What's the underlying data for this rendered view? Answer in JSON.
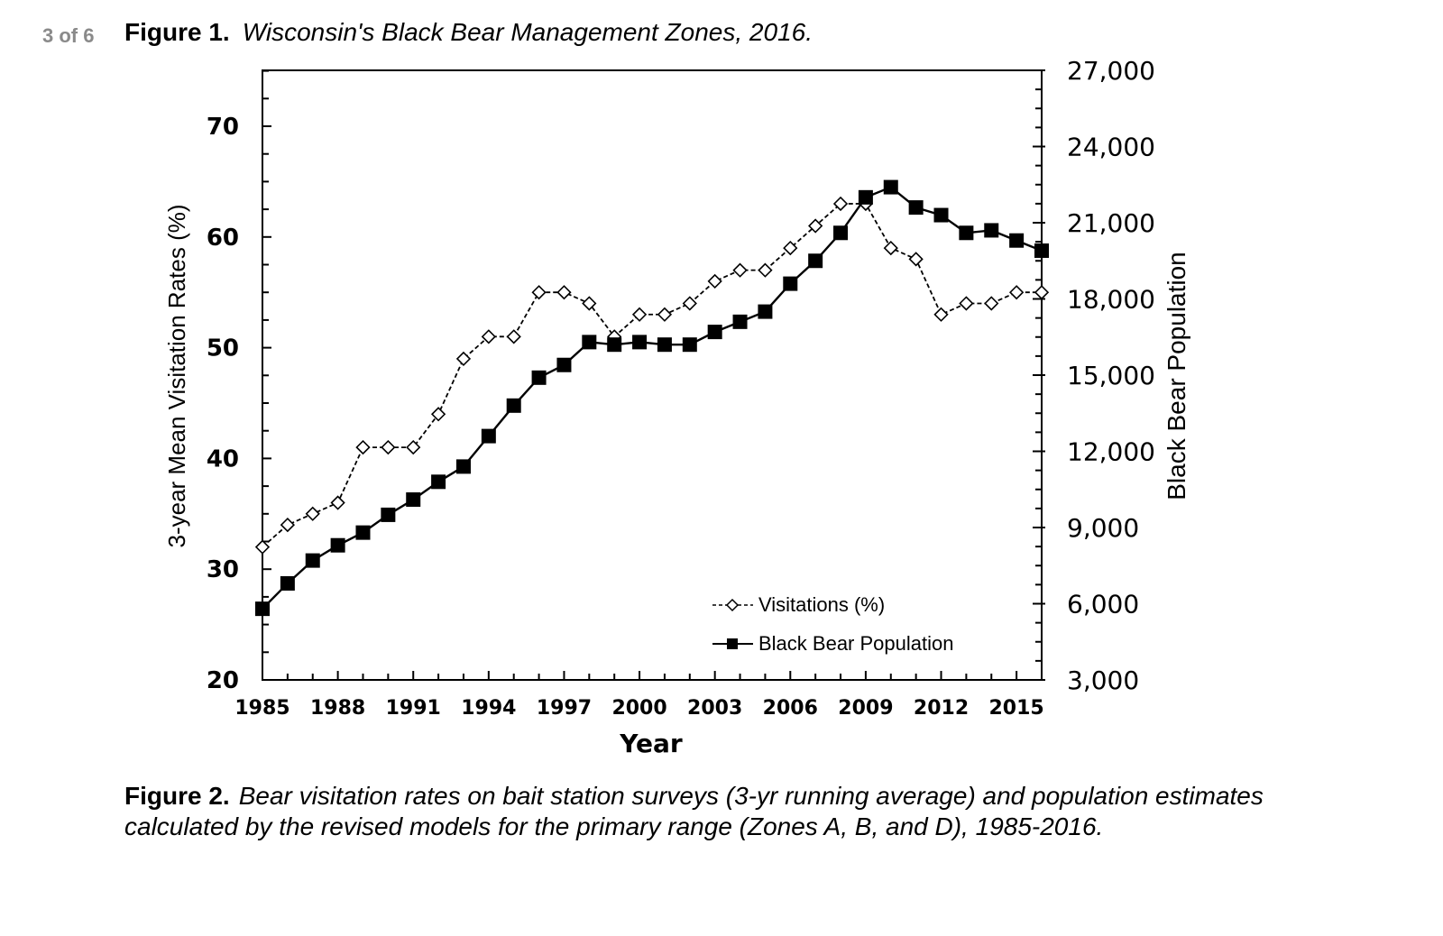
{
  "page": {
    "page_indicator": "3 of 6",
    "figure1": {
      "label": "Figure 1.",
      "title": "Wisconsin's Black Bear Management Zones, 2016."
    },
    "figure2": {
      "label": "Figure 2.",
      "caption": "Bear visitation rates on bait station surveys (3-yr running average) and population estimates calculated by the revised models for the primary range (Zones A, B, and D), 1985-2016."
    }
  },
  "chart_data": {
    "type": "line",
    "title": "",
    "xlabel": "Year",
    "ylabel": "3-year Mean Visitation Rates (%)",
    "ylabel_right": "Black Bear Population",
    "x": [
      1985,
      1986,
      1987,
      1988,
      1989,
      1990,
      1991,
      1992,
      1993,
      1994,
      1995,
      1996,
      1997,
      1998,
      1999,
      2000,
      2001,
      2002,
      2003,
      2004,
      2005,
      2006,
      2007,
      2008,
      2009,
      2010,
      2011,
      2012,
      2013,
      2014,
      2015,
      2016
    ],
    "x_ticks": [
      "1985",
      "1988",
      "1991",
      "1994",
      "1997",
      "2000",
      "2003",
      "2006",
      "2009",
      "2012",
      "2015"
    ],
    "ylim": [
      20,
      75
    ],
    "y_ticks": [
      "20",
      "30",
      "40",
      "50",
      "60",
      "70"
    ],
    "ylim_right": [
      3000,
      27000
    ],
    "y_ticks_right": [
      "3,000",
      "6,000",
      "9,000",
      "12,000",
      "15,000",
      "18,000",
      "21,000",
      "24,000",
      "27,000"
    ],
    "series": [
      {
        "name": "Visitations (%)",
        "axis": "left",
        "style": "dashed, open diamond markers",
        "values": [
          32,
          34,
          35,
          36,
          41,
          41,
          41,
          44,
          49,
          51,
          51,
          55,
          55,
          54,
          51,
          53,
          53,
          54,
          56,
          57,
          57,
          59,
          61,
          63,
          63,
          59,
          58,
          53,
          54,
          54,
          55,
          55
        ]
      },
      {
        "name": "Black Bear Population",
        "axis": "right",
        "style": "solid, filled square markers",
        "values": [
          5800,
          6800,
          7700,
          8300,
          8800,
          9500,
          10100,
          10800,
          11400,
          12600,
          13800,
          14900,
          15400,
          16300,
          16200,
          16300,
          16200,
          16200,
          16700,
          17100,
          17500,
          18600,
          19500,
          20600,
          22000,
          22400,
          21600,
          21300,
          20600,
          20700,
          20300,
          19900
        ]
      }
    ],
    "legend": {
      "position": "lower right inside",
      "entries": [
        "Visitations (%)",
        "Black Bear Population"
      ]
    },
    "grid": false
  }
}
